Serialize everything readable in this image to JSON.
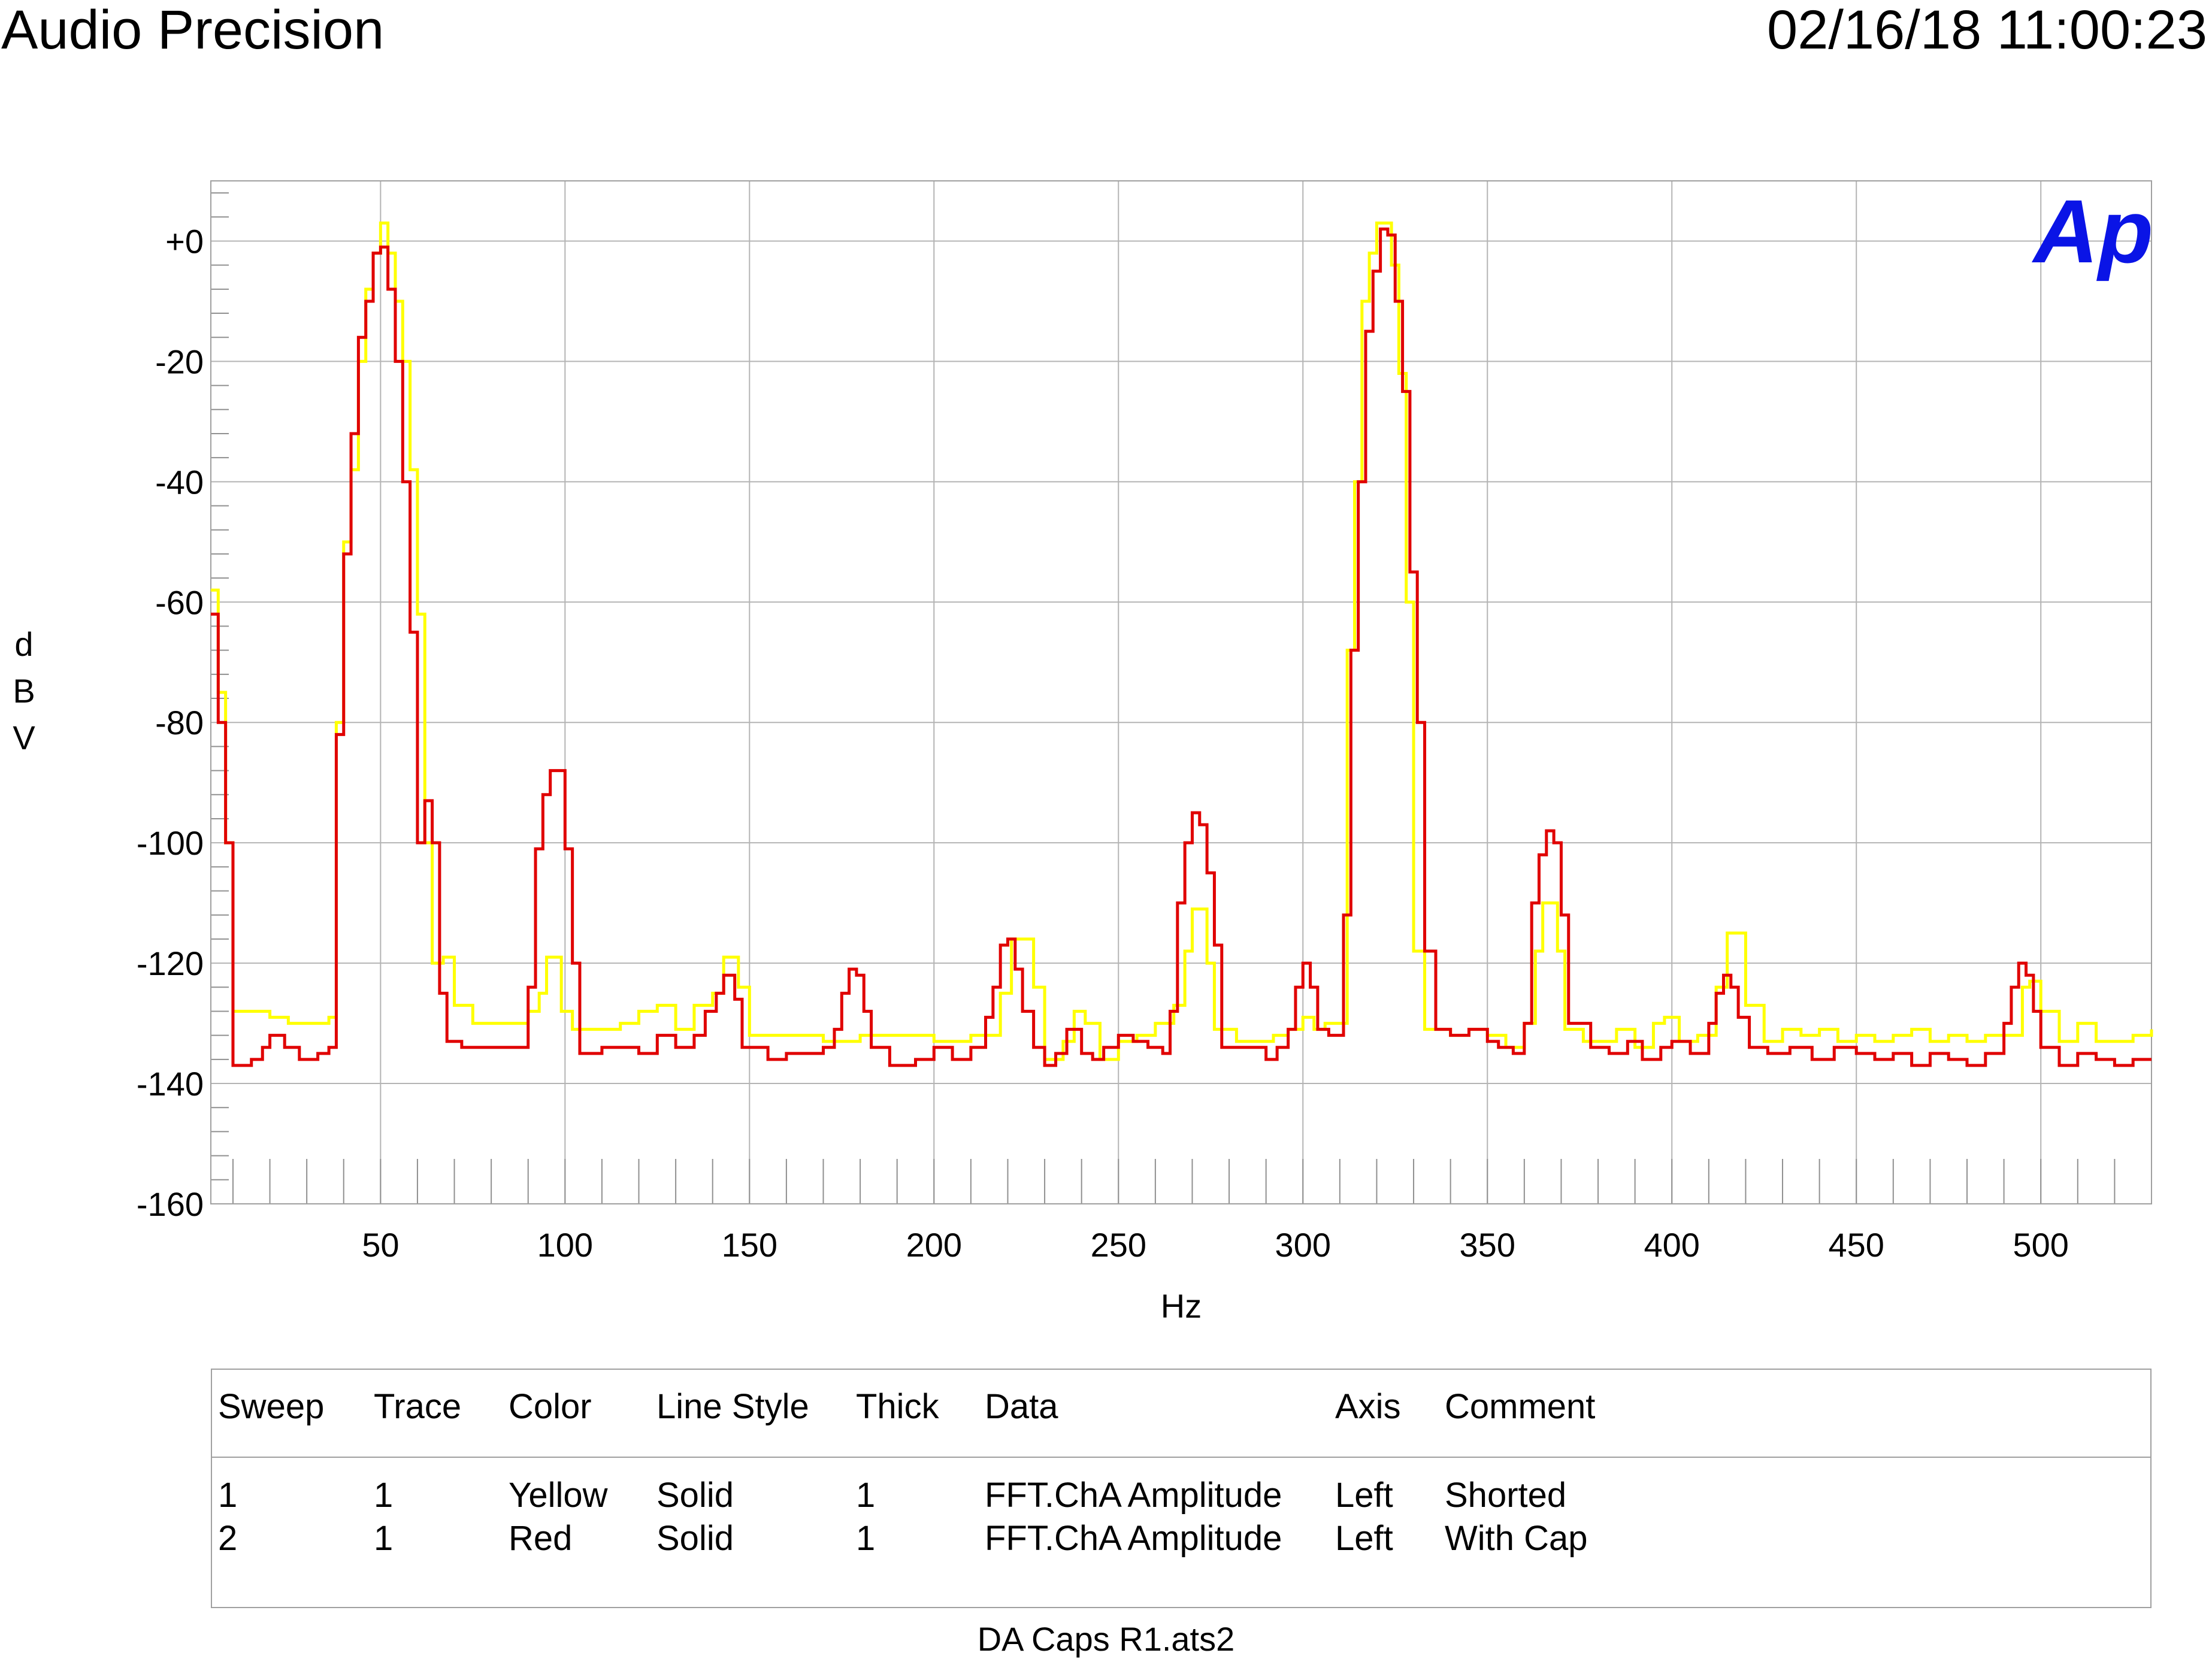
{
  "header": {
    "app_title": "Audio Precision",
    "timestamp": "02/16/18 11:00:23"
  },
  "logo_text": "Ap",
  "colors": {
    "grid": "#b4b4b4",
    "yellow": "#ffff00",
    "red": "#e00000",
    "logo": "#0a14e6"
  },
  "chart_data": {
    "type": "line",
    "xlabel": "Hz",
    "ylabel": "dBV",
    "xlim": [
      4,
      530
    ],
    "ylim": [
      -160,
      10
    ],
    "x_ticks": [
      50,
      100,
      150,
      200,
      250,
      300,
      350,
      400,
      450,
      500
    ],
    "y_ticks": [
      0,
      -20,
      -40,
      -60,
      -80,
      -100,
      -120,
      -140,
      -160
    ],
    "y_tick_labels": [
      "+0",
      "-20",
      "-40",
      "-60",
      "-80",
      "-100",
      "-120",
      "-140",
      "-160"
    ],
    "series": [
      {
        "name": "Shorted",
        "color": "yellow",
        "points": [
          [
            4,
            -58
          ],
          [
            6,
            -75
          ],
          [
            8,
            -100
          ],
          [
            10,
            -128
          ],
          [
            15,
            -128
          ],
          [
            20,
            -129
          ],
          [
            25,
            -130
          ],
          [
            30,
            -130
          ],
          [
            36,
            -129
          ],
          [
            38,
            -80
          ],
          [
            40,
            -50
          ],
          [
            42,
            -38
          ],
          [
            44,
            -20
          ],
          [
            46,
            -8
          ],
          [
            48,
            -2
          ],
          [
            50,
            3
          ],
          [
            52,
            -2
          ],
          [
            54,
            -10
          ],
          [
            56,
            -20
          ],
          [
            58,
            -38
          ],
          [
            60,
            -62
          ],
          [
            62,
            -100
          ],
          [
            64,
            -120
          ],
          [
            67,
            -119
          ],
          [
            70,
            -127
          ],
          [
            75,
            -130
          ],
          [
            80,
            -130
          ],
          [
            85,
            -130
          ],
          [
            90,
            -128
          ],
          [
            93,
            -125
          ],
          [
            95,
            -119
          ],
          [
            97,
            -119
          ],
          [
            99,
            -128
          ],
          [
            102,
            -131
          ],
          [
            110,
            -131
          ],
          [
            115,
            -130
          ],
          [
            120,
            -128
          ],
          [
            125,
            -127
          ],
          [
            130,
            -131
          ],
          [
            135,
            -127
          ],
          [
            140,
            -125
          ],
          [
            143,
            -119
          ],
          [
            145,
            -119
          ],
          [
            147,
            -124
          ],
          [
            150,
            -132
          ],
          [
            160,
            -132
          ],
          [
            170,
            -133
          ],
          [
            180,
            -132
          ],
          [
            190,
            -132
          ],
          [
            200,
            -133
          ],
          [
            210,
            -132
          ],
          [
            218,
            -125
          ],
          [
            221,
            -116
          ],
          [
            224,
            -116
          ],
          [
            227,
            -124
          ],
          [
            230,
            -136
          ],
          [
            235,
            -133
          ],
          [
            238,
            -128
          ],
          [
            241,
            -130
          ],
          [
            245,
            -136
          ],
          [
            250,
            -133
          ],
          [
            255,
            -132
          ],
          [
            260,
            -130
          ],
          [
            265,
            -127
          ],
          [
            268,
            -118
          ],
          [
            270,
            -111
          ],
          [
            272,
            -111
          ],
          [
            274,
            -120
          ],
          [
            276,
            -131
          ],
          [
            282,
            -133
          ],
          [
            288,
            -133
          ],
          [
            292,
            -132
          ],
          [
            296,
            -131
          ],
          [
            300,
            -129
          ],
          [
            303,
            -131
          ],
          [
            306,
            -130
          ],
          [
            309,
            -130
          ],
          [
            312,
            -68
          ],
          [
            314,
            -40
          ],
          [
            316,
            -10
          ],
          [
            318,
            -2
          ],
          [
            320,
            3
          ],
          [
            322,
            3
          ],
          [
            324,
            -4
          ],
          [
            326,
            -22
          ],
          [
            328,
            -60
          ],
          [
            330,
            -118
          ],
          [
            333,
            -131
          ],
          [
            340,
            -132
          ],
          [
            345,
            -131
          ],
          [
            350,
            -132
          ],
          [
            355,
            -134
          ],
          [
            360,
            -130
          ],
          [
            363,
            -118
          ],
          [
            365,
            -110
          ],
          [
            367,
            -110
          ],
          [
            369,
            -118
          ],
          [
            371,
            -131
          ],
          [
            376,
            -133
          ],
          [
            381,
            -133
          ],
          [
            385,
            -131
          ],
          [
            390,
            -134
          ],
          [
            395,
            -130
          ],
          [
            398,
            -129
          ],
          [
            402,
            -133
          ],
          [
            407,
            -132
          ],
          [
            412,
            -124
          ],
          [
            415,
            -115
          ],
          [
            417,
            -115
          ],
          [
            420,
            -127
          ],
          [
            425,
            -133
          ],
          [
            430,
            -131
          ],
          [
            435,
            -132
          ],
          [
            440,
            -131
          ],
          [
            445,
            -133
          ],
          [
            450,
            -132
          ],
          [
            455,
            -133
          ],
          [
            460,
            -132
          ],
          [
            465,
            -131
          ],
          [
            470,
            -133
          ],
          [
            475,
            -132
          ],
          [
            480,
            -133
          ],
          [
            485,
            -132
          ],
          [
            490,
            -132
          ],
          [
            495,
            -124
          ],
          [
            497,
            -123
          ],
          [
            500,
            -128
          ],
          [
            505,
            -133
          ],
          [
            510,
            -130
          ],
          [
            515,
            -133
          ],
          [
            520,
            -133
          ],
          [
            525,
            -132
          ],
          [
            530,
            -131
          ]
        ]
      },
      {
        "name": "With Cap",
        "color": "red",
        "points": [
          [
            4,
            -62
          ],
          [
            6,
            -80
          ],
          [
            8,
            -100
          ],
          [
            10,
            -137
          ],
          [
            15,
            -136
          ],
          [
            18,
            -134
          ],
          [
            20,
            -132
          ],
          [
            24,
            -134
          ],
          [
            28,
            -136
          ],
          [
            33,
            -135
          ],
          [
            36,
            -134
          ],
          [
            38,
            -82
          ],
          [
            40,
            -52
          ],
          [
            42,
            -32
          ],
          [
            44,
            -16
          ],
          [
            46,
            -10
          ],
          [
            48,
            -2
          ],
          [
            50,
            -1
          ],
          [
            52,
            -8
          ],
          [
            54,
            -20
          ],
          [
            56,
            -40
          ],
          [
            58,
            -65
          ],
          [
            60,
            -100
          ],
          [
            62,
            -93
          ],
          [
            64,
            -100
          ],
          [
            66,
            -125
          ],
          [
            68,
            -133
          ],
          [
            72,
            -134
          ],
          [
            80,
            -134
          ],
          [
            88,
            -134
          ],
          [
            90,
            -124
          ],
          [
            92,
            -101
          ],
          [
            94,
            -92
          ],
          [
            96,
            -88
          ],
          [
            98,
            -88
          ],
          [
            100,
            -101
          ],
          [
            102,
            -120
          ],
          [
            104,
            -135
          ],
          [
            110,
            -134
          ],
          [
            120,
            -135
          ],
          [
            125,
            -132
          ],
          [
            130,
            -134
          ],
          [
            135,
            -132
          ],
          [
            138,
            -128
          ],
          [
            141,
            -125
          ],
          [
            143,
            -122
          ],
          [
            146,
            -126
          ],
          [
            148,
            -134
          ],
          [
            155,
            -136
          ],
          [
            160,
            -135
          ],
          [
            170,
            -134
          ],
          [
            173,
            -131
          ],
          [
            175,
            -125
          ],
          [
            177,
            -121
          ],
          [
            179,
            -122
          ],
          [
            181,
            -128
          ],
          [
            183,
            -134
          ],
          [
            188,
            -137
          ],
          [
            195,
            -136
          ],
          [
            200,
            -134
          ],
          [
            205,
            -136
          ],
          [
            210,
            -134
          ],
          [
            214,
            -129
          ],
          [
            216,
            -124
          ],
          [
            218,
            -117
          ],
          [
            220,
            -116
          ],
          [
            222,
            -121
          ],
          [
            224,
            -128
          ],
          [
            227,
            -134
          ],
          [
            230,
            -137
          ],
          [
            233,
            -135
          ],
          [
            236,
            -131
          ],
          [
            238,
            -131
          ],
          [
            240,
            -135
          ],
          [
            243,
            -136
          ],
          [
            246,
            -134
          ],
          [
            250,
            -132
          ],
          [
            254,
            -133
          ],
          [
            258,
            -134
          ],
          [
            262,
            -135
          ],
          [
            264,
            -128
          ],
          [
            266,
            -110
          ],
          [
            268,
            -100
          ],
          [
            270,
            -95
          ],
          [
            272,
            -97
          ],
          [
            274,
            -105
          ],
          [
            276,
            -117
          ],
          [
            278,
            -134
          ],
          [
            284,
            -134
          ],
          [
            290,
            -136
          ],
          [
            293,
            -134
          ],
          [
            296,
            -131
          ],
          [
            298,
            -124
          ],
          [
            300,
            -120
          ],
          [
            302,
            -124
          ],
          [
            304,
            -131
          ],
          [
            307,
            -132
          ],
          [
            309,
            -132
          ],
          [
            311,
            -112
          ],
          [
            313,
            -68
          ],
          [
            315,
            -40
          ],
          [
            317,
            -15
          ],
          [
            319,
            -5
          ],
          [
            321,
            2
          ],
          [
            323,
            1
          ],
          [
            325,
            -10
          ],
          [
            327,
            -25
          ],
          [
            329,
            -55
          ],
          [
            331,
            -80
          ],
          [
            333,
            -118
          ],
          [
            336,
            -131
          ],
          [
            340,
            -132
          ],
          [
            345,
            -131
          ],
          [
            350,
            -133
          ],
          [
            353,
            -134
          ],
          [
            357,
            -135
          ],
          [
            360,
            -130
          ],
          [
            362,
            -110
          ],
          [
            364,
            -102
          ],
          [
            366,
            -98
          ],
          [
            368,
            -100
          ],
          [
            370,
            -112
          ],
          [
            372,
            -130
          ],
          [
            378,
            -134
          ],
          [
            383,
            -135
          ],
          [
            388,
            -133
          ],
          [
            392,
            -136
          ],
          [
            397,
            -134
          ],
          [
            400,
            -133
          ],
          [
            405,
            -135
          ],
          [
            410,
            -130
          ],
          [
            412,
            -125
          ],
          [
            414,
            -122
          ],
          [
            416,
            -124
          ],
          [
            418,
            -129
          ],
          [
            421,
            -134
          ],
          [
            426,
            -135
          ],
          [
            432,
            -134
          ],
          [
            438,
            -136
          ],
          [
            444,
            -134
          ],
          [
            450,
            -135
          ],
          [
            455,
            -136
          ],
          [
            460,
            -135
          ],
          [
            465,
            -137
          ],
          [
            470,
            -135
          ],
          [
            475,
            -136
          ],
          [
            480,
            -137
          ],
          [
            485,
            -135
          ],
          [
            490,
            -130
          ],
          [
            492,
            -124
          ],
          [
            494,
            -120
          ],
          [
            496,
            -122
          ],
          [
            498,
            -128
          ],
          [
            500,
            -134
          ],
          [
            505,
            -137
          ],
          [
            510,
            -135
          ],
          [
            515,
            -136
          ],
          [
            520,
            -137
          ],
          [
            525,
            -136
          ],
          [
            530,
            -136
          ]
        ]
      }
    ]
  },
  "legend": {
    "headers": [
      "Sweep",
      "Trace",
      "Color",
      "Line Style",
      "Thick",
      "Data",
      "Axis",
      "Comment"
    ],
    "rows": [
      [
        "1",
        "1",
        "Yellow",
        "Solid",
        "1",
        "FFT.ChA Amplitude",
        "Left",
        "Shorted"
      ],
      [
        "2",
        "1",
        "Red",
        "Solid",
        "1",
        "FFT.ChA Amplitude",
        "Left",
        "With Cap"
      ]
    ]
  },
  "footer": {
    "filename": "DA Caps R1.ats2"
  }
}
